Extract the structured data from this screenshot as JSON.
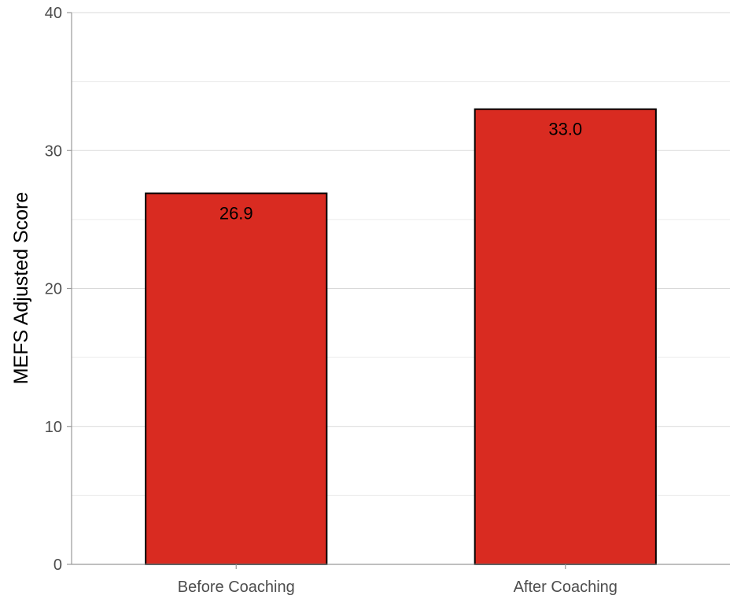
{
  "chart_data": {
    "type": "bar",
    "categories": [
      "Before Coaching",
      "After Coaching"
    ],
    "values": [
      26.9,
      33.0
    ],
    "data_labels": [
      "26.9",
      "33.0"
    ],
    "xlabel": "",
    "ylabel": "MEFS Adjusted Score",
    "ylim": [
      0,
      40
    ],
    "yticks": [
      0,
      10,
      20,
      30,
      40
    ],
    "grid": true,
    "bar_color": "#d92b21"
  }
}
